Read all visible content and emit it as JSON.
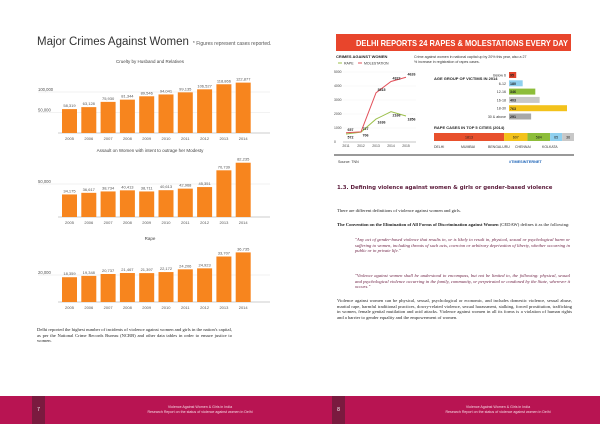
{
  "left_page": {
    "title": "Major Crimes Against Women",
    "note": "* Figures represent cases reported.",
    "paragraph": "Delhi reported the highest number of incidents of violence against women and girls in the nation's capital, as per the National Crime Records Bureau (NCRB) and other data tables in order to ensure justice to women.",
    "page_number": "7"
  },
  "chart_data": [
    {
      "type": "bar",
      "title": "Cruelty by Husband and Relatives",
      "categories": [
        "2005",
        "2006",
        "2007",
        "2008",
        "2009",
        "2010",
        "2011",
        "2012",
        "2013",
        "2014"
      ],
      "values": [
        58319,
        63128,
        75930,
        81344,
        89546,
        94041,
        99135,
        106527,
        118866,
        122877
      ],
      "yticks": [
        50000,
        100000
      ],
      "ytick_labels": [
        "50,000",
        "100,000"
      ],
      "value_labels": [
        "58,319",
        "63,128",
        "75,930",
        "81,344",
        "89,546",
        "94,041",
        "99,135",
        "106,527",
        "118,866",
        "122,877"
      ],
      "color": "#f7851e"
    },
    {
      "type": "bar",
      "title": "Assault on Women with intent to outrage her Modesty",
      "categories": [
        "2005",
        "2006",
        "2007",
        "2008",
        "2009",
        "2010",
        "2011",
        "2012",
        "2013",
        "2014"
      ],
      "values": [
        34175,
        36617,
        38734,
        40413,
        38711,
        40613,
        42968,
        45351,
        70739,
        82235
      ],
      "yticks": [
        50000
      ],
      "ytick_labels": [
        "50,000"
      ],
      "value_labels": [
        "34,175",
        "36,617",
        "38,734",
        "40,413",
        "38,711",
        "40,613",
        "42,968",
        "45,351",
        "70,739",
        "82,235"
      ],
      "color": "#f7851e"
    },
    {
      "type": "bar",
      "title": "Rape",
      "categories": [
        "2005",
        "2006",
        "2007",
        "2008",
        "2009",
        "2010",
        "2011",
        "2012",
        "2013",
        "2014"
      ],
      "values": [
        18359,
        19348,
        20737,
        21467,
        21397,
        22172,
        24206,
        24923,
        33707,
        36735
      ],
      "yticks": [
        20000
      ],
      "ytick_labels": [
        "20,000"
      ],
      "value_labels": [
        "18,359",
        "19,348",
        "20,737",
        "21,467",
        "21,397",
        "22,172",
        "24,206",
        "24,923",
        "33,707",
        "36,735"
      ],
      "color": "#f7851e"
    },
    {
      "type": "line",
      "title": "CRIMES AGAINST WOMEN",
      "categories": [
        "2011",
        "2012",
        "2013",
        "2014",
        "2015"
      ],
      "yticks": [
        "0",
        "1000",
        "2000",
        "3000",
        "4000",
        "5000"
      ],
      "series": [
        {
          "name": "RAPE",
          "values": [
            572,
            706,
            1636,
            2166,
            1856
          ],
          "color": "#9bbf4a"
        },
        {
          "name": "MOLESTATION",
          "values": [
            657,
            727,
            3515,
            4322,
            4626
          ],
          "color": "#e2505a"
        }
      ]
    },
    {
      "type": "bar",
      "title": "AGE GROUP OF VICTIMS IN 2014",
      "categories": [
        "Below 6",
        "6-12",
        "12-16",
        "16-18",
        "18-30",
        "30 & above"
      ],
      "values": [
        95,
        180,
        346,
        403,
        763,
        291
      ],
      "colors": [
        "#e0442c",
        "#8fd0ef",
        "#8dbd3a",
        "#c8c8c8",
        "#f3c21b",
        "#a8a8a8"
      ]
    },
    {
      "type": "bar",
      "title": "RAPE CASES IN TOP 5 CITIES (2014)",
      "categories": [
        "DELHI",
        "MUMBAI",
        "BENGALURU",
        "CHENNAI",
        "KOLKATA"
      ],
      "values": [
        1813,
        607,
        584,
        65,
        36
      ],
      "colors": [
        "#e8502c",
        "#f3c21b",
        "#8dbd3a",
        "#8fd0ef",
        "#c8c8c8"
      ]
    }
  ],
  "infographic": {
    "banner": "DELHI REPORTS 24 RAPES & MOLESTATIONS EVERY DAY",
    "subtitle": "Crime against women in national capital up by 20% this year, also a 27% increase in registration of rapes cases.",
    "source": "Source: TNN",
    "brand": "#TIMESINTERNET"
  },
  "right_page": {
    "heading": "1.3. Defining violence against women & girls or gender-based violence",
    "intro": "There are different definitions of violence against women and girls.",
    "cedaw": "The Convention on the Elimination of All Forms of Discrimination against Women",
    "cedaw_rest": "(CEDAW) defines it as the following:",
    "quote1": "\"Any act of gender-based violence that results in, or is likely to result in, physical, sexual or psychological harm or suffering to women, including threats of such acts, coercion or arbitrary deprivation of liberty, whether occurring in public or in private life.\"",
    "quote2": "\"Violence against women shall be understood to encompass, but not be limited to, the following: physical, sexual and psychological violence occurring in the family, community, or perpetrated or condoned by the State, wherever it occurs.\"",
    "paragraph": "Violence against women can be physical, sexual, psychological or economic, and includes domestic violence, sexual abuse, marital rape, harmful traditional practices, dowry-related violence, sexual harassment, stalking, forced prostitution, trafficking in women, female genital mutilation and acid attacks. Violence against women in all its forms is a violation of human rights and a barrier to gender equality and the empowerment of women.",
    "page_number": "8"
  },
  "footer": {
    "line1": "Violence Against Women & Girls in India",
    "line2": "Research Report on the status of violence against women in Delhi"
  },
  "colors": {
    "footer": "#b81452",
    "page_tab": "#7a1a3f",
    "bars": "#f7851e",
    "banner": "#e8452c"
  }
}
